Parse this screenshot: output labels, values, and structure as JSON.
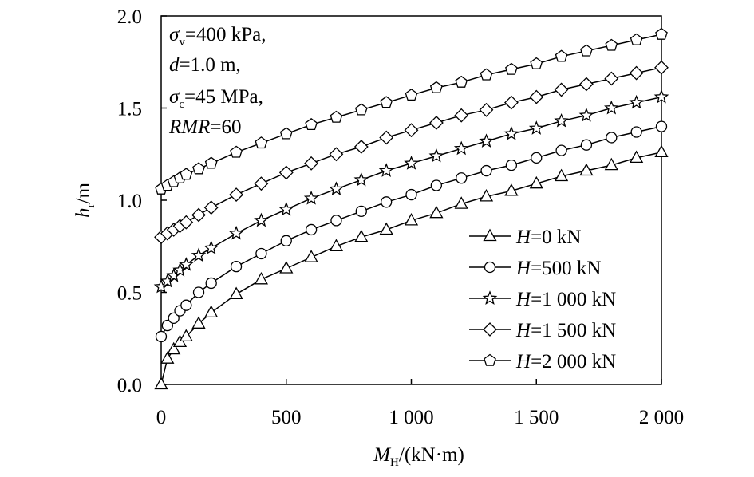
{
  "chart_data": {
    "type": "line",
    "xlabel": {
      "main": "M",
      "sub": "H",
      "unit": "/(kN·m)"
    },
    "ylabel": {
      "main": "h",
      "sub": "r",
      "unit": "/m"
    },
    "xlim": [
      0,
      2000
    ],
    "ylim": [
      0,
      2.0
    ],
    "xticks": [
      0,
      500,
      1000,
      1500,
      2000
    ],
    "xtick_labels": [
      "0",
      "500",
      "1 000",
      "1 500",
      "2 000"
    ],
    "yticks": [
      0,
      0.5,
      1.0,
      1.5,
      2.0
    ],
    "ytick_labels": [
      "0.0",
      "0.5",
      "1.0",
      "1.5",
      "2.0"
    ],
    "grid": false,
    "legend_position": "bottom-right",
    "annotations": [
      {
        "sym": "σ",
        "sub": "v",
        "rest": "=400 kPa,"
      },
      {
        "sym": "d",
        "sub": "",
        "rest": "=1.0 m,"
      },
      {
        "sym": "σ",
        "sub": "c",
        "rest": "=45 MPa,"
      },
      {
        "sym": "RMR",
        "sub": "",
        "rest": "=60"
      }
    ],
    "x": [
      0,
      25,
      50,
      75,
      100,
      150,
      200,
      300,
      400,
      500,
      600,
      700,
      800,
      900,
      1000,
      1100,
      1200,
      1300,
      1400,
      1500,
      1600,
      1700,
      1800,
      1900,
      2000
    ],
    "series": [
      {
        "name": "H=0 kN",
        "name_sym": "H",
        "name_rest": "=0 kN",
        "marker": "triangle",
        "values": [
          0.0,
          0.14,
          0.19,
          0.23,
          0.26,
          0.33,
          0.39,
          0.49,
          0.57,
          0.63,
          0.69,
          0.75,
          0.8,
          0.84,
          0.89,
          0.93,
          0.98,
          1.02,
          1.05,
          1.09,
          1.13,
          1.16,
          1.19,
          1.23,
          1.26
        ]
      },
      {
        "name": "H=500 kN",
        "name_sym": "H",
        "name_rest": "=500 kN",
        "marker": "circle",
        "values": [
          0.26,
          0.32,
          0.36,
          0.4,
          0.43,
          0.5,
          0.55,
          0.64,
          0.71,
          0.78,
          0.84,
          0.89,
          0.94,
          0.99,
          1.03,
          1.08,
          1.12,
          1.16,
          1.19,
          1.23,
          1.27,
          1.3,
          1.34,
          1.37,
          1.4
        ]
      },
      {
        "name": "H=1 000 kN",
        "name_sym": "H",
        "name_rest": "=1 000 kN",
        "marker": "star",
        "values": [
          0.53,
          0.56,
          0.59,
          0.62,
          0.65,
          0.7,
          0.74,
          0.82,
          0.89,
          0.95,
          1.01,
          1.06,
          1.11,
          1.16,
          1.2,
          1.24,
          1.28,
          1.32,
          1.36,
          1.39,
          1.43,
          1.46,
          1.5,
          1.53,
          1.56
        ]
      },
      {
        "name": "H=1 500 kN",
        "name_sym": "H",
        "name_rest": "=1 500 kN",
        "marker": "diamond",
        "values": [
          0.8,
          0.82,
          0.84,
          0.86,
          0.88,
          0.92,
          0.96,
          1.03,
          1.09,
          1.15,
          1.2,
          1.25,
          1.29,
          1.34,
          1.38,
          1.42,
          1.46,
          1.49,
          1.53,
          1.56,
          1.6,
          1.63,
          1.66,
          1.69,
          1.72
        ]
      },
      {
        "name": "H=2 000 kN",
        "name_sym": "H",
        "name_rest": "=2 000 kN",
        "marker": "pentagon",
        "values": [
          1.06,
          1.08,
          1.1,
          1.12,
          1.14,
          1.17,
          1.2,
          1.26,
          1.31,
          1.36,
          1.41,
          1.45,
          1.49,
          1.53,
          1.57,
          1.61,
          1.64,
          1.68,
          1.71,
          1.74,
          1.78,
          1.81,
          1.84,
          1.87,
          1.9
        ]
      }
    ]
  }
}
